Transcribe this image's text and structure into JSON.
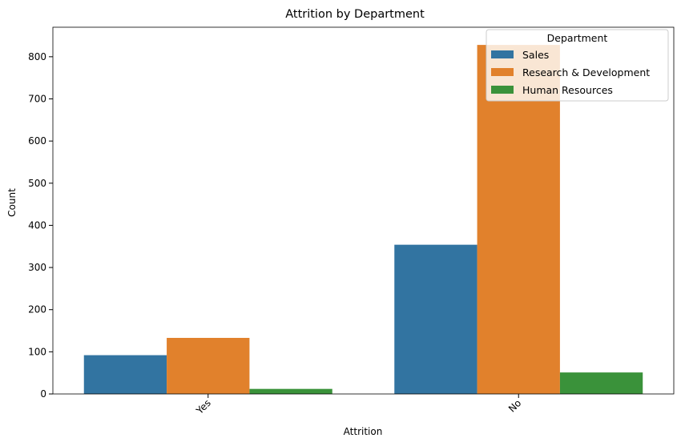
{
  "chart_data": {
    "type": "bar",
    "title": "Attrition by Department",
    "xlabel": "Attrition",
    "ylabel": "Count",
    "categories": [
      "Yes",
      "No"
    ],
    "series": [
      {
        "name": "Sales",
        "values": [
          92,
          354
        ],
        "color": "#3274a1"
      },
      {
        "name": "Research & Development",
        "values": [
          133,
          828
        ],
        "color": "#e1812c"
      },
      {
        "name": "Human Resources",
        "values": [
          12,
          51
        ],
        "color": "#3a923a"
      }
    ],
    "ylim": [
      0,
      870
    ],
    "yticks": [
      0,
      100,
      200,
      300,
      400,
      500,
      600,
      700,
      800
    ],
    "grid": false,
    "legend": {
      "title": "Department",
      "position": "top-right"
    }
  }
}
